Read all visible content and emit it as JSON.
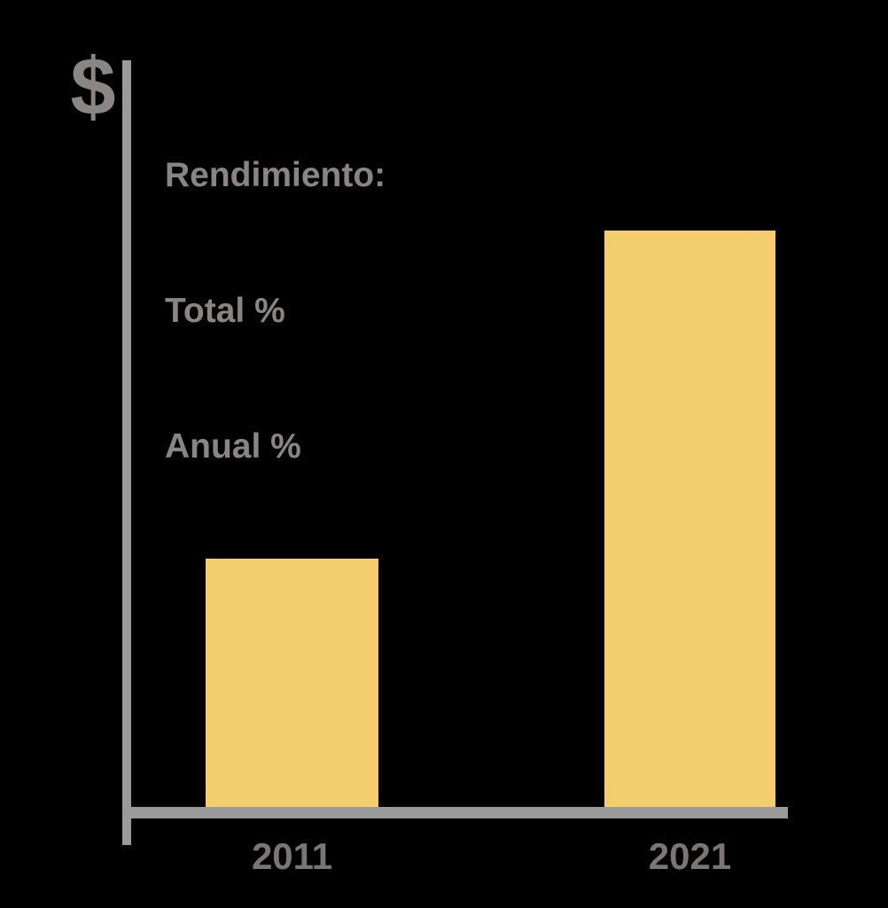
{
  "chart_data": {
    "type": "bar",
    "categories": [
      "2011",
      "2021"
    ],
    "values_relative": [
      43,
      100
    ],
    "note": "No numeric scale shown; bar heights are relative (2021 bar is about 2.3 times the 2011 bar)",
    "title": "",
    "xlabel": "",
    "ylabel": "$",
    "annotation_lines": [
      "Rendimiento:",
      "Total %",
      "Anual %"
    ],
    "legend_position": "top-left",
    "grid": false,
    "bar_color": "#F3CD6E",
    "axis_color": "#9A9A9A"
  },
  "axis": {
    "y_symbol": "$"
  },
  "legend": {
    "lines": [
      "Rendimiento:",
      "Total %",
      "Anual %"
    ]
  },
  "x_tick_labels": [
    "2011",
    "2021"
  ],
  "colors": {
    "background": "#000000",
    "bar_yellow": "#F3CD6E",
    "axis_gray": "#9A9A9A",
    "symbol_gray": "#8B8683",
    "legend_gray": "#8A8584",
    "tick_label_gray": "#7B7674"
  }
}
